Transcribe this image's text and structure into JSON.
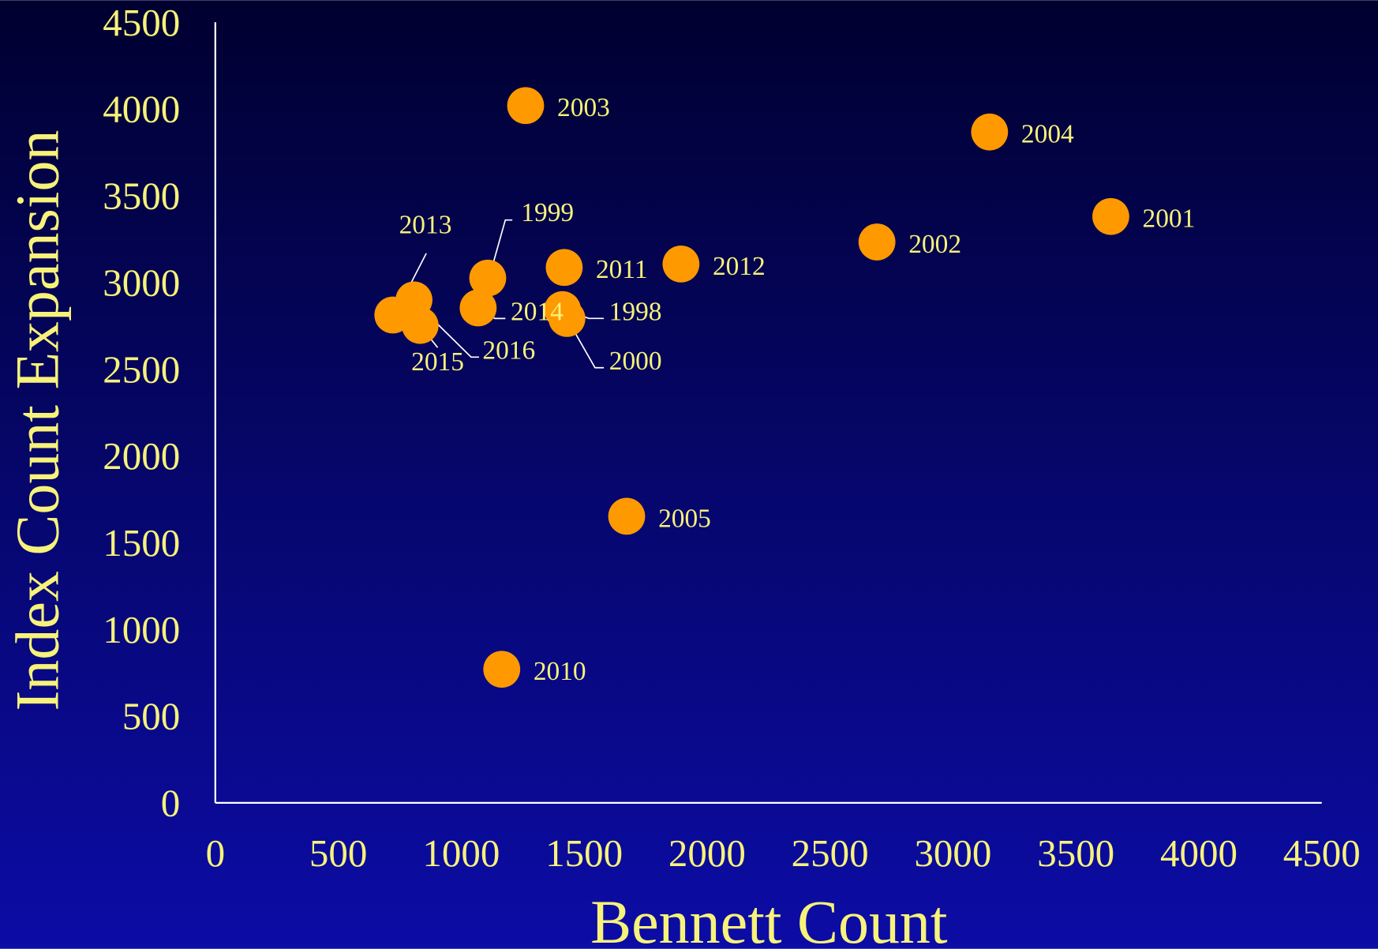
{
  "chart_data": {
    "type": "scatter",
    "x_label": "Bennett Count",
    "y_label": "Index Count Expansion",
    "labels": [
      "1998",
      "1999",
      "2000",
      "2001",
      "2002",
      "2003",
      "2004",
      "2005",
      "2010",
      "2011",
      "2012",
      "2013",
      "2014",
      "2015",
      "2016"
    ],
    "x": [
      1412,
      1108,
      1430,
      3642,
      2691,
      1262,
      3149,
      1673,
      1165,
      1419,
      1894,
      808,
      1069,
      722,
      833
    ],
    "y": [
      2843,
      3025,
      2792,
      3380,
      3233,
      4019,
      3867,
      1652,
      770,
      3086,
      3106,
      2899,
      2853,
      2812,
      2752
    ],
    "color": "#ff9900",
    "xlim": [
      0,
      4500
    ],
    "ylim": [
      0,
      4500
    ],
    "xticks": [
      0,
      500,
      1000,
      1500,
      2000,
      2500,
      3000,
      3500,
      4000,
      4500
    ],
    "yticks": [
      0,
      500,
      1000,
      1500,
      2000,
      2500,
      3000,
      3500,
      4000,
      4500
    ]
  }
}
